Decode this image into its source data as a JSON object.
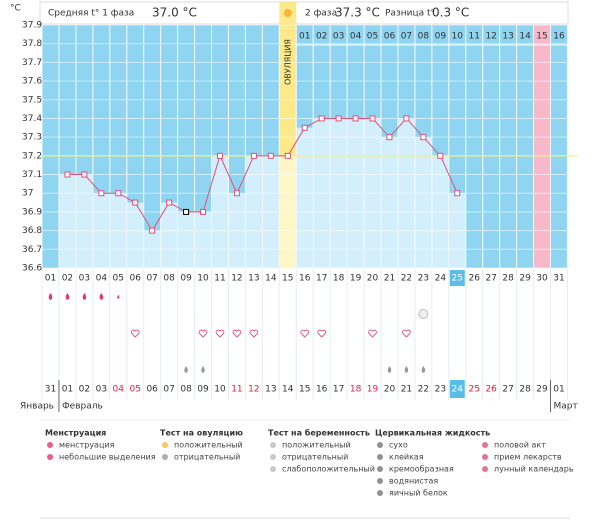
{
  "header": {
    "phase1_label": "Средняя t° 1 фаза",
    "phase1_value": "37.0 °C",
    "phase2_label": "2 фаза",
    "phase2_value": "37.3 °C",
    "diff_label": "Разница t°",
    "diff_value": "0.3 °C"
  },
  "chart_data": {
    "type": "line",
    "y_label": "°C",
    "ovulation_label": "ОВУЛЯЦИЯ",
    "categories": [
      "01",
      "02",
      "03",
      "04",
      "05",
      "06",
      "07",
      "08",
      "09",
      "10",
      "11",
      "12",
      "13",
      "14",
      "15",
      "16",
      "17",
      "18",
      "19",
      "20",
      "21",
      "22",
      "23",
      "24",
      "25",
      "26",
      "27",
      "28",
      "29",
      "30",
      "31"
    ],
    "phase2_days": [
      null,
      null,
      null,
      null,
      null,
      null,
      null,
      null,
      null,
      null,
      null,
      null,
      null,
      null,
      null,
      "01",
      "02",
      "03",
      "04",
      "05",
      "06",
      "07",
      "08",
      "09",
      "10",
      "11",
      "12",
      "13",
      "14",
      "15",
      "16"
    ],
    "values": [
      null,
      37.1,
      37.1,
      37.0,
      37.0,
      36.95,
      36.8,
      36.95,
      36.9,
      36.9,
      37.2,
      37.0,
      37.2,
      37.2,
      37.2,
      37.35,
      37.4,
      37.4,
      37.4,
      37.4,
      37.3,
      37.4,
      37.3,
      37.2,
      37.0,
      null,
      null,
      null,
      null,
      null,
      null
    ],
    "color": "#e0507a",
    "coverline": 37.2,
    "ylim": [
      36.6,
      37.9
    ],
    "yticks": [
      36.6,
      36.7,
      36.8,
      36.9,
      37,
      37.1,
      37.2,
      37.3,
      37.4,
      37.5,
      37.6,
      37.7,
      37.8,
      37.9
    ],
    "dates": [
      "31",
      "01",
      "02",
      "03",
      "04",
      "05",
      "06",
      "07",
      "08",
      "09",
      "10",
      "11",
      "12",
      "13",
      "14",
      "15",
      "16",
      "17",
      "18",
      "19",
      "20",
      "21",
      "22",
      "23",
      "24",
      "25",
      "26",
      "27",
      "28",
      "29",
      "01"
    ],
    "months": [
      "Январь",
      "Февраль",
      "Март"
    ]
  },
  "legend": [
    {
      "title": "Менструация",
      "items": [
        "менструация",
        "небольшие выделения"
      ]
    },
    {
      "title": "Тест на овуляцию",
      "items": [
        "положительный",
        "отрицательный"
      ]
    },
    {
      "title": "Тест на беременность",
      "items": [
        "положительный",
        "отрицательный",
        "слабоположительный"
      ]
    },
    {
      "title": "Цервикальная жидкость",
      "items": [
        "сухо",
        "клейкая",
        "кремообразная",
        "водянистая",
        "яичный белок"
      ]
    },
    {
      "title": null,
      "items": [
        "половой акт",
        "прием лекарств",
        "лунный календарь"
      ]
    }
  ]
}
